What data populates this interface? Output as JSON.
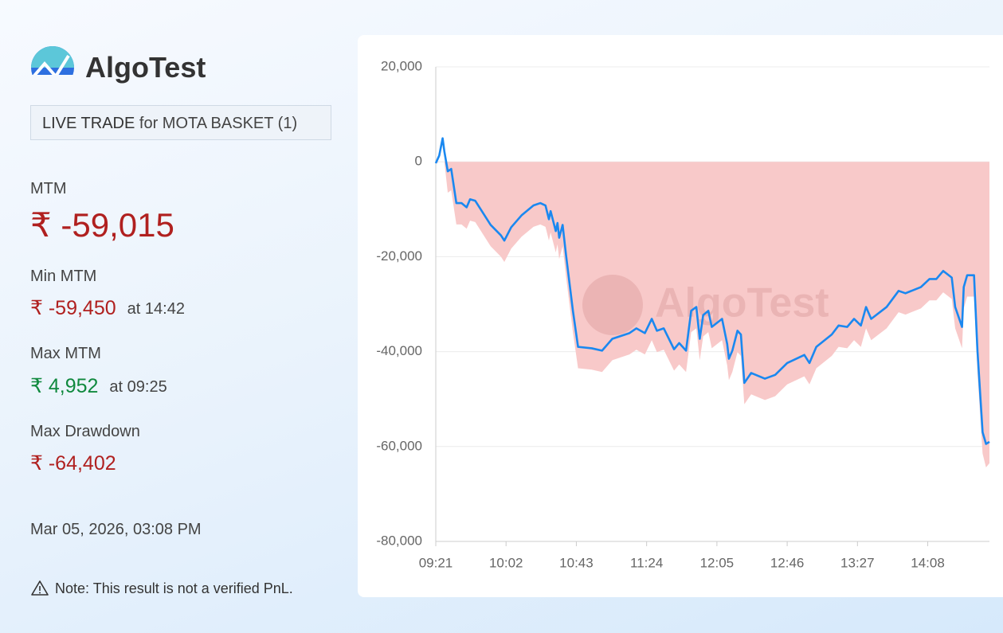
{
  "brand": "AlgoTest",
  "badge": {
    "label": "LIVE TRADE",
    "text": "for MOTA BASKET (1)"
  },
  "stats": [
    {
      "label": "MTM",
      "value": "₹ -59,015",
      "color": "#b0201f"
    },
    {
      "label": "Min MTM",
      "value": "₹ -59,450",
      "time": "at 14:42",
      "color": "#b0201f"
    },
    {
      "label": "Max MTM",
      "value": "₹ 4,952",
      "time": "at 09:25",
      "color": "#10893e"
    },
    {
      "label": "Max Drawdown",
      "value": "₹ -64,402",
      "color": "#b0201f"
    }
  ],
  "timestamp": "Mar 05, 2026, 03:08 PM",
  "note": "Note: This result is not a verified PnL.",
  "chart_data": {
    "type": "line",
    "x": [
      "09:21",
      "09:23",
      "09:25",
      "09:26",
      "09:28",
      "09:30",
      "09:33",
      "09:36",
      "09:39",
      "09:41",
      "09:44",
      "09:47",
      "09:53",
      "09:59",
      "10:01",
      "10:05",
      "10:11",
      "10:18",
      "10:22",
      "10:25",
      "10:27",
      "10:28",
      "10:31",
      "10:32",
      "10:33",
      "10:35",
      "10:37",
      "10:41",
      "10:44",
      "10:52",
      "10:58",
      "11:04",
      "11:14",
      "11:18",
      "11:23",
      "11:27",
      "11:30",
      "11:34",
      "11:40",
      "11:43",
      "11:47",
      "11:50",
      "11:53",
      "11:55",
      "11:57",
      "12:00",
      "12:02",
      "12:08",
      "12:11",
      "12:12",
      "12:14",
      "12:17",
      "12:19",
      "12:21",
      "12:25",
      "12:33",
      "12:39",
      "12:46",
      "12:56",
      "12:59",
      "13:03",
      "13:12",
      "13:16",
      "13:21",
      "13:25",
      "13:29",
      "13:32",
      "13:35",
      "13:44",
      "13:51",
      "13:55",
      "14:04",
      "14:09",
      "14:13",
      "14:17",
      "14:22",
      "14:24",
      "14:28",
      "14:29",
      "14:31",
      "14:35",
      "14:37",
      "14:40",
      "14:42",
      "14:44"
    ],
    "series": [
      {
        "kind": "area",
        "color": "#f8c9c9",
        "values": [
          -300,
          0,
          0,
          0,
          -6500,
          -6000,
          -13200,
          -13200,
          -14100,
          -12400,
          -12700,
          -14400,
          -17800,
          -20000,
          -21100,
          -18300,
          -15800,
          -13700,
          -13200,
          -13700,
          -16600,
          -14900,
          -19100,
          -17400,
          -20500,
          -17800,
          -24200,
          -35900,
          -43500,
          -43800,
          -44300,
          -41800,
          -40600,
          -39600,
          -40600,
          -37600,
          -40100,
          -39600,
          -44000,
          -42700,
          -44300,
          -35900,
          -35100,
          -41800,
          -36800,
          -35900,
          -39300,
          -37600,
          -42900,
          -46000,
          -44300,
          -40100,
          -40900,
          -51100,
          -49000,
          -50200,
          -49400,
          -46900,
          -45200,
          -46900,
          -43500,
          -40900,
          -39000,
          -39300,
          -37600,
          -39000,
          -35100,
          -37600,
          -35100,
          -31700,
          -32200,
          -30900,
          -29200,
          -29200,
          -27500,
          -28900,
          -35100,
          -39300,
          -30900,
          -28400,
          -28400,
          -44300,
          -61500,
          -64402,
          -63515
        ]
      },
      {
        "kind": "line",
        "color": "#1a88f0",
        "values": [
          -300,
          1300,
          4952,
          2200,
          -2000,
          -1500,
          -8700,
          -8700,
          -9600,
          -7900,
          -8200,
          -9900,
          -13300,
          -15500,
          -16600,
          -13800,
          -11300,
          -9200,
          -8700,
          -9200,
          -12100,
          -10400,
          -14600,
          -12900,
          -16000,
          -13300,
          -19700,
          -31400,
          -39000,
          -39300,
          -39800,
          -37300,
          -36100,
          -35100,
          -36100,
          -33100,
          -35600,
          -35100,
          -39500,
          -38200,
          -39800,
          -31400,
          -30600,
          -37300,
          -32300,
          -31400,
          -34800,
          -33100,
          -38400,
          -41500,
          -39800,
          -35600,
          -36400,
          -46600,
          -44500,
          -45700,
          -44900,
          -42400,
          -40700,
          -42400,
          -39000,
          -36400,
          -34500,
          -34800,
          -33100,
          -34500,
          -30600,
          -33100,
          -30600,
          -27200,
          -27700,
          -26400,
          -24700,
          -24700,
          -23000,
          -24400,
          -30600,
          -34800,
          -26400,
          -23900,
          -23900,
          -39800,
          -57000,
          -59450,
          -59015
        ]
      }
    ],
    "xlim": [
      "09:21",
      "14:44"
    ],
    "xticks": [
      "09:21",
      "10:02",
      "10:43",
      "11:24",
      "12:05",
      "12:46",
      "13:27",
      "14:08"
    ],
    "ylim": [
      -80000,
      20000
    ],
    "yticks": [
      {
        "value": -80000,
        "label": "-80,000"
      },
      {
        "value": -60000,
        "label": "-60,000"
      },
      {
        "value": -40000,
        "label": "-40,000"
      },
      {
        "value": -20000,
        "label": "-20,000"
      },
      0,
      {
        "value": 20000,
        "label": "20,000"
      }
    ],
    "grid": true
  }
}
